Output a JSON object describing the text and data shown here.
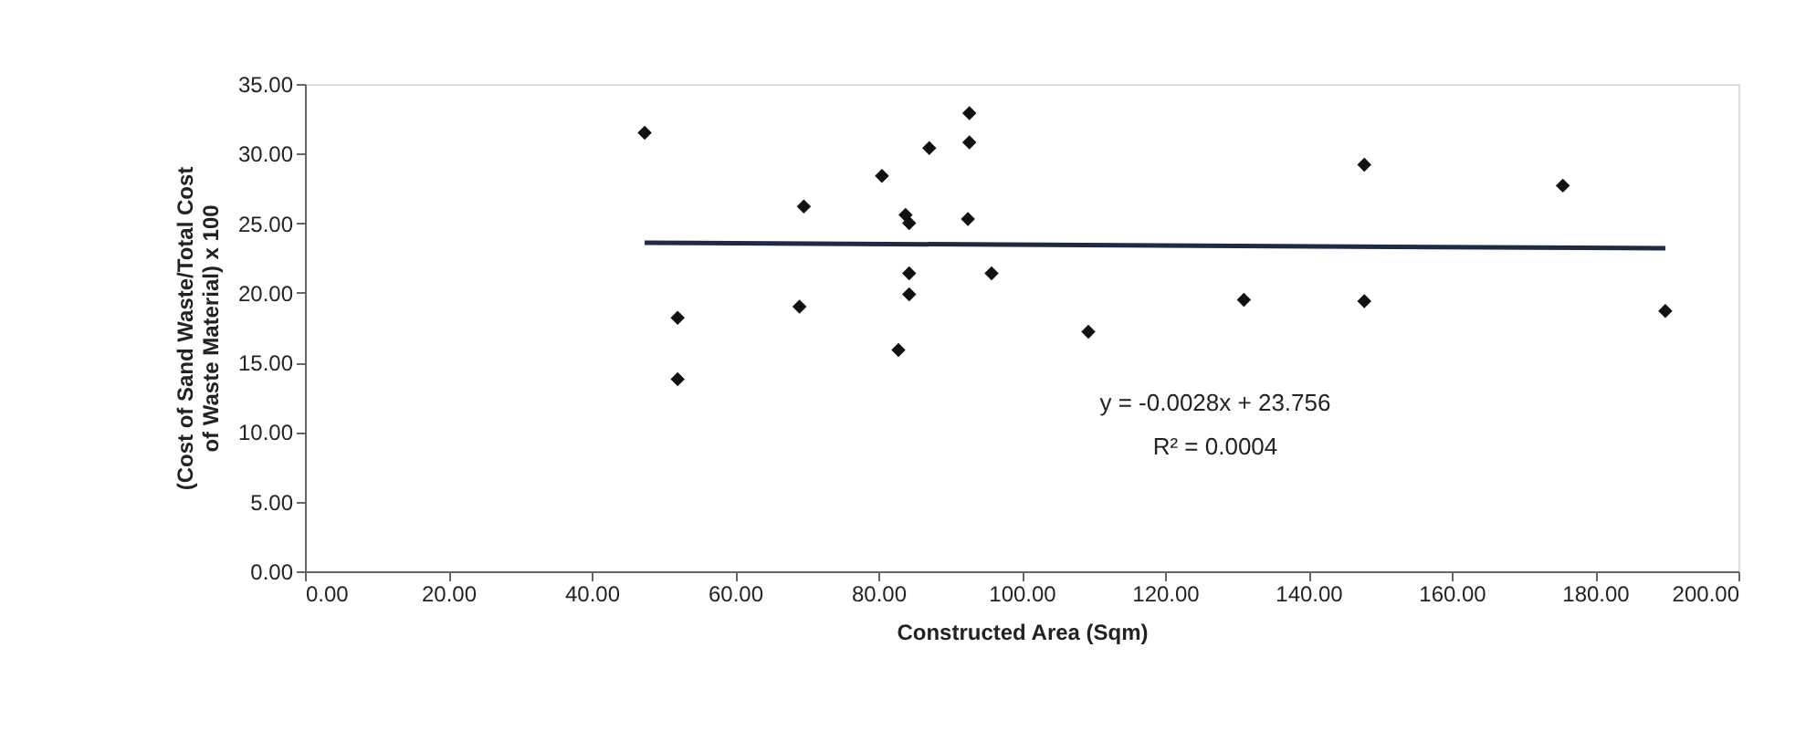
{
  "chart_data": {
    "type": "scatter",
    "xlabel": "Constructed Area (Sqm)",
    "ylabel": "(Cost of Sand Waste/Total Cost of Waste Material) x 100",
    "series": [
      {
        "color": "#111111",
        "x": [
          47.4,
          52.0,
          52.0,
          69.0,
          69.6,
          80.5,
          82.8,
          83.8,
          84.3,
          84.3,
          84.3,
          87.1,
          92.7,
          92.7,
          92.5,
          95.8,
          109.3,
          131.0,
          147.8,
          147.8,
          175.5,
          189.8
        ],
        "values": [
          31.5,
          18.2,
          13.8,
          19.0,
          26.2,
          28.4,
          15.9,
          25.6,
          25.0,
          21.4,
          19.9,
          30.4,
          32.9,
          30.8,
          25.3,
          21.4,
          17.2,
          19.5,
          29.2,
          19.4,
          27.7,
          18.7
        ]
      },
      {
        "type": "line",
        "color": "#1f2a44",
        "marker": "none",
        "x": [
          47.4,
          189.8
        ],
        "values": [
          23.6,
          23.2
        ]
      }
    ],
    "annotations": [
      "y = -0.0028x + 23.756",
      "R² = 0.0004"
    ],
    "xlim": [
      0,
      200
    ],
    "xticks": [
      {
        "value": 0,
        "label": "0.00"
      },
      {
        "value": 20,
        "label": "20.00"
      },
      {
        "value": 40,
        "label": "40.00"
      },
      {
        "value": 60,
        "label": "60.00"
      },
      {
        "value": 80,
        "label": "80.00"
      },
      {
        "value": 100,
        "label": "100.00"
      },
      {
        "value": 120,
        "label": "120.00"
      },
      {
        "value": 140,
        "label": "140.00"
      },
      {
        "value": 160,
        "label": "160.00"
      },
      {
        "value": 180,
        "label": "180.00"
      },
      {
        "value": 200,
        "label": "200.00"
      }
    ],
    "ylim": [
      0,
      35
    ],
    "yticks": [
      {
        "value": 0,
        "label": "0.00"
      },
      {
        "value": 5,
        "label": "5.00"
      },
      {
        "value": 10,
        "label": "10.00"
      },
      {
        "value": 15,
        "label": "15.00"
      },
      {
        "value": 20,
        "label": "20.00"
      },
      {
        "value": 25,
        "label": "25.00"
      },
      {
        "value": 30,
        "label": "30.00"
      },
      {
        "value": 35,
        "label": "35.00"
      }
    ],
    "grid": false,
    "marker": "diamond",
    "line_style": "solid"
  }
}
